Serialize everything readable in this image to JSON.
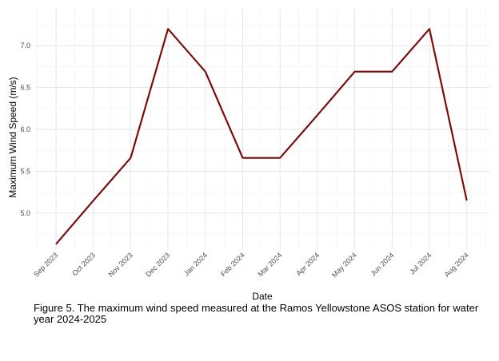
{
  "chart_data": {
    "type": "line",
    "xlabel": "Date",
    "ylabel": "Maximum Wind Speed (m/s)",
    "x": [
      "Sep 2023",
      "Oct 2023",
      "Nov 2023",
      "Dec 2023",
      "Jan 2024",
      "Feb 2024",
      "Mar 2024",
      "Apr 2024",
      "May 2024",
      "Jun 2024",
      "Jul 2024",
      "Aug 2024"
    ],
    "series": [
      {
        "values": [
          4.63,
          5.15,
          5.66,
          7.2,
          6.69,
          5.66,
          5.66,
          6.17,
          6.69,
          6.69,
          7.2,
          5.15
        ],
        "color": "#7b0c0c"
      }
    ],
    "y_ticks": [
      "5.0",
      "5.5",
      "6.0",
      "6.5",
      "7.0"
    ],
    "ylim": [
      4.57,
      7.45
    ],
    "grid": true,
    "legend": "none"
  },
  "caption": "Figure 5. The maximum wind speed measured at the Ramos Yellowstone ASOS station for water year 2024-2025"
}
